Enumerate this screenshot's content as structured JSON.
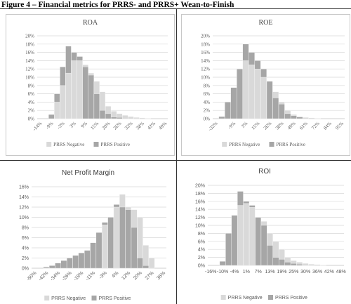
{
  "figure_title": "Figure 4 – Financial metrics for PRRS- and PRRS+ Wean-to-Finish",
  "colors": {
    "negative": "#d9d9d9",
    "positive": "#a6a6a6",
    "grid": "#d9d9d9",
    "axis": "#bfbfbf",
    "text": "#595959",
    "title": "#404040"
  },
  "chart_data": [
    {
      "type": "bar",
      "title": "ROA",
      "xlabel": "",
      "ylabel": "",
      "ylim": [
        0,
        20
      ],
      "yticks": [
        "0%",
        "2%",
        "4%",
        "6%",
        "8%",
        "10%",
        "12%",
        "14%",
        "16%",
        "18%",
        "20%"
      ],
      "x_tick_labels": [
        "-14%",
        "-9%",
        "-3%",
        "3%",
        "9%",
        "15%",
        "20%",
        "26%",
        "32%",
        "38%",
        "43%",
        "49%"
      ],
      "categories": [
        "-14%",
        "-12%",
        "-9%",
        "-6%",
        "-3%",
        "0%",
        "3%",
        "6%",
        "9%",
        "12%",
        "15%",
        "17%",
        "20%",
        "23%",
        "26%",
        "29%",
        "32%",
        "35%",
        "38%",
        "41%",
        "43%",
        "46%",
        "49%"
      ],
      "series": [
        {
          "name": "PRRS Negative",
          "values": [
            0,
            0,
            1,
            4,
            8,
            11,
            14,
            14,
            13,
            11,
            9,
            6.5,
            3,
            1.8,
            1.2,
            0.8,
            0.5,
            0.3,
            0.2,
            0.1,
            0,
            0,
            0
          ]
        },
        {
          "name": "PRRS Positive",
          "values": [
            0,
            0,
            1,
            6,
            12.5,
            17.5,
            16,
            15,
            12.5,
            10.5,
            6,
            2,
            1.2,
            0.4,
            0.3,
            0.1,
            0.1,
            0,
            0,
            0,
            0,
            0,
            0
          ]
        }
      ],
      "legend": "bottom"
    },
    {
      "type": "bar",
      "title": "ROE",
      "xlabel": "",
      "ylabel": "",
      "ylim": [
        0,
        20
      ],
      "yticks": [
        "0%",
        "2%",
        "4%",
        "6%",
        "8%",
        "10%",
        "12%",
        "14%",
        "16%",
        "18%",
        "20%"
      ],
      "x_tick_labels": [
        "-32%",
        "-9%",
        "3%",
        "15%",
        "26%",
        "38%",
        "49%",
        "61%",
        "72%",
        "84%",
        "95%"
      ],
      "categories": [
        "-32%",
        "-20%",
        "-14%",
        "-9%",
        "-3%",
        "3%",
        "9%",
        "15%",
        "20%",
        "26%",
        "32%",
        "38%",
        "43%",
        "49%",
        "55%",
        "61%",
        "67%",
        "72%",
        "78%",
        "84%",
        "90%",
        "95%"
      ],
      "series": [
        {
          "name": "PRRS Negative",
          "values": [
            0,
            0.5,
            4,
            7.5,
            12,
            14,
            13,
            12,
            10,
            9,
            6.5,
            4,
            2,
            1,
            0.5,
            0.3,
            0.2,
            0.1,
            0,
            0,
            0,
            0
          ]
        },
        {
          "name": "PRRS Positive",
          "values": [
            0,
            0.5,
            4,
            7.5,
            12,
            18,
            16,
            14,
            12,
            9,
            5,
            3.5,
            1.2,
            0.7,
            0.4,
            0.1,
            0,
            0,
            0,
            0,
            0,
            0
          ]
        }
      ],
      "legend": "bottom"
    },
    {
      "type": "bar",
      "title": "Net Profit Margin",
      "xlabel": "",
      "ylabel": "",
      "ylim": [
        0,
        16
      ],
      "yticks": [
        "0%",
        "2%",
        "4%",
        "6%",
        "8%",
        "10%",
        "12%",
        "14%",
        "16%"
      ],
      "x_tick_labels": [
        "-50%",
        "-42%",
        "-34%",
        "-26%",
        "-19%",
        "-11%",
        "-3%",
        "4%",
        "12%",
        "20%",
        "27%",
        "35%"
      ],
      "categories": [
        "-50%",
        "-46%",
        "-42%",
        "-38%",
        "-34%",
        "-30%",
        "-26%",
        "-23%",
        "-19%",
        "-15%",
        "-11%",
        "-7%",
        "-3%",
        "1%",
        "4%",
        "8%",
        "12%",
        "16%",
        "20%",
        "24%",
        "27%",
        "31%",
        "35%"
      ],
      "series": [
        {
          "name": "PRRS Negative",
          "values": [
            0,
            0,
            0.3,
            0.5,
            1,
            1.5,
            2,
            2.5,
            3,
            3.5,
            5,
            7,
            8.5,
            10,
            12,
            14.5,
            12,
            11.5,
            10,
            4.5,
            2,
            0,
            0
          ]
        },
        {
          "name": "PRRS Positive",
          "values": [
            0,
            0,
            0.2,
            0.5,
            1,
            1.5,
            2,
            2.5,
            3,
            3.5,
            5,
            7,
            9,
            10,
            12.5,
            12,
            11.5,
            8,
            2,
            0.5,
            0,
            0,
            0
          ]
        }
      ],
      "legend": "bottom"
    },
    {
      "type": "bar",
      "title": "ROI",
      "xlabel": "",
      "ylabel": "",
      "ylim": [
        0,
        20
      ],
      "yticks": [
        "0%",
        "2%",
        "4%",
        "6%",
        "8%",
        "10%",
        "12%",
        "14%",
        "16%",
        "18%",
        "20%"
      ],
      "x_tick_labels": [
        "-16%",
        "-10%",
        "-4%",
        "1%",
        "7%",
        "13%",
        "19%",
        "25%",
        "30%",
        "36%",
        "42%",
        "48%"
      ],
      "categories": [
        "-16%",
        "-13%",
        "-10%",
        "-7%",
        "-4%",
        "-1%",
        "1%",
        "4%",
        "7%",
        "10%",
        "13%",
        "16%",
        "19%",
        "22%",
        "25%",
        "27%",
        "30%",
        "33%",
        "36%",
        "39%",
        "42%",
        "45%",
        "48%"
      ],
      "series": [
        {
          "name": "PRRS Negative",
          "values": [
            0,
            0,
            1,
            8,
            12.5,
            15,
            15.5,
            14.5,
            12,
            11,
            8,
            6,
            4,
            2,
            1.2,
            0.8,
            0.5,
            0.3,
            0.2,
            0.1,
            0,
            0,
            0
          ]
        },
        {
          "name": "PRRS Positive",
          "values": [
            0,
            0,
            1,
            8,
            12.5,
            18.5,
            16,
            15,
            12,
            10,
            5,
            2,
            1.5,
            0.8,
            0.5,
            0.3,
            0.1,
            0.1,
            0,
            0,
            0,
            0,
            0
          ]
        }
      ],
      "legend": "bottom"
    }
  ]
}
